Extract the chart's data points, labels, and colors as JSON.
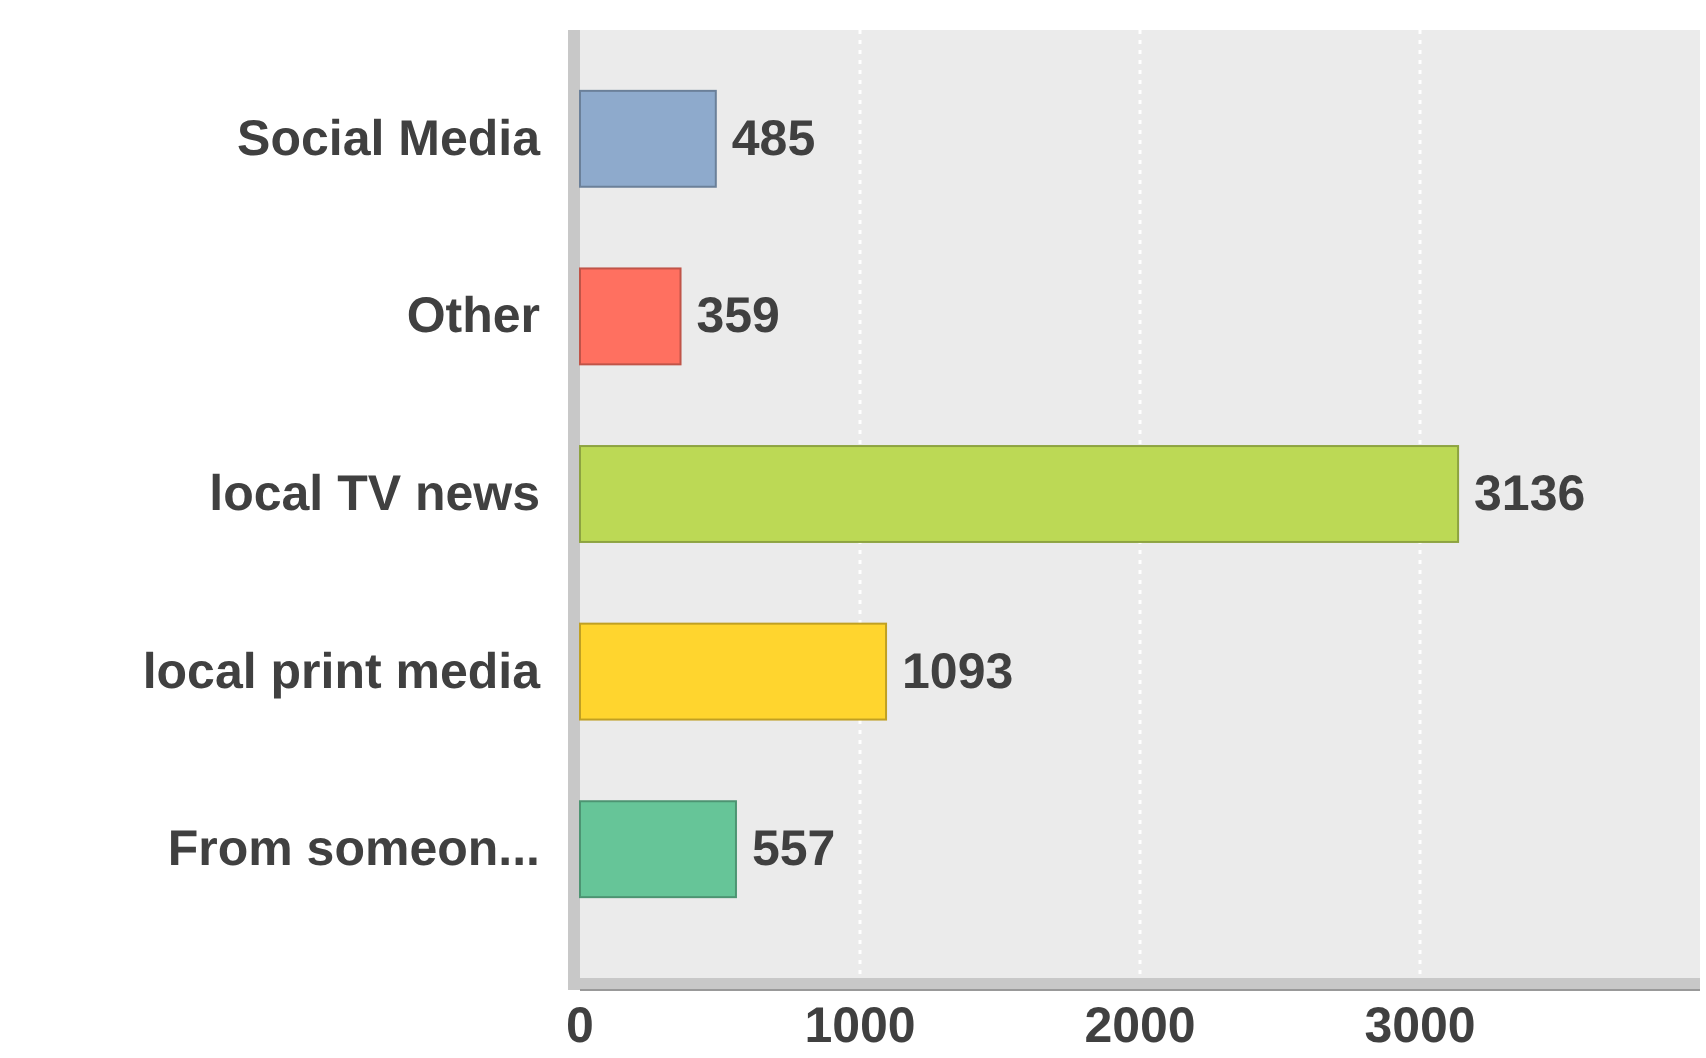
{
  "chart_data": {
    "type": "bar",
    "orientation": "horizontal",
    "categories": [
      "Social Media",
      "Other",
      "local TV news",
      "local print media",
      "From someon..."
    ],
    "values": [
      485,
      359,
      3136,
      1093,
      557
    ],
    "colors": [
      "#8eaacc",
      "#ff7060",
      "#bcd955",
      "#ffd52e",
      "#66c598"
    ],
    "xlim": [
      0,
      4000
    ],
    "xticks": [
      0,
      1000,
      2000,
      3000
    ],
    "grid": "x",
    "data_labels": true
  }
}
